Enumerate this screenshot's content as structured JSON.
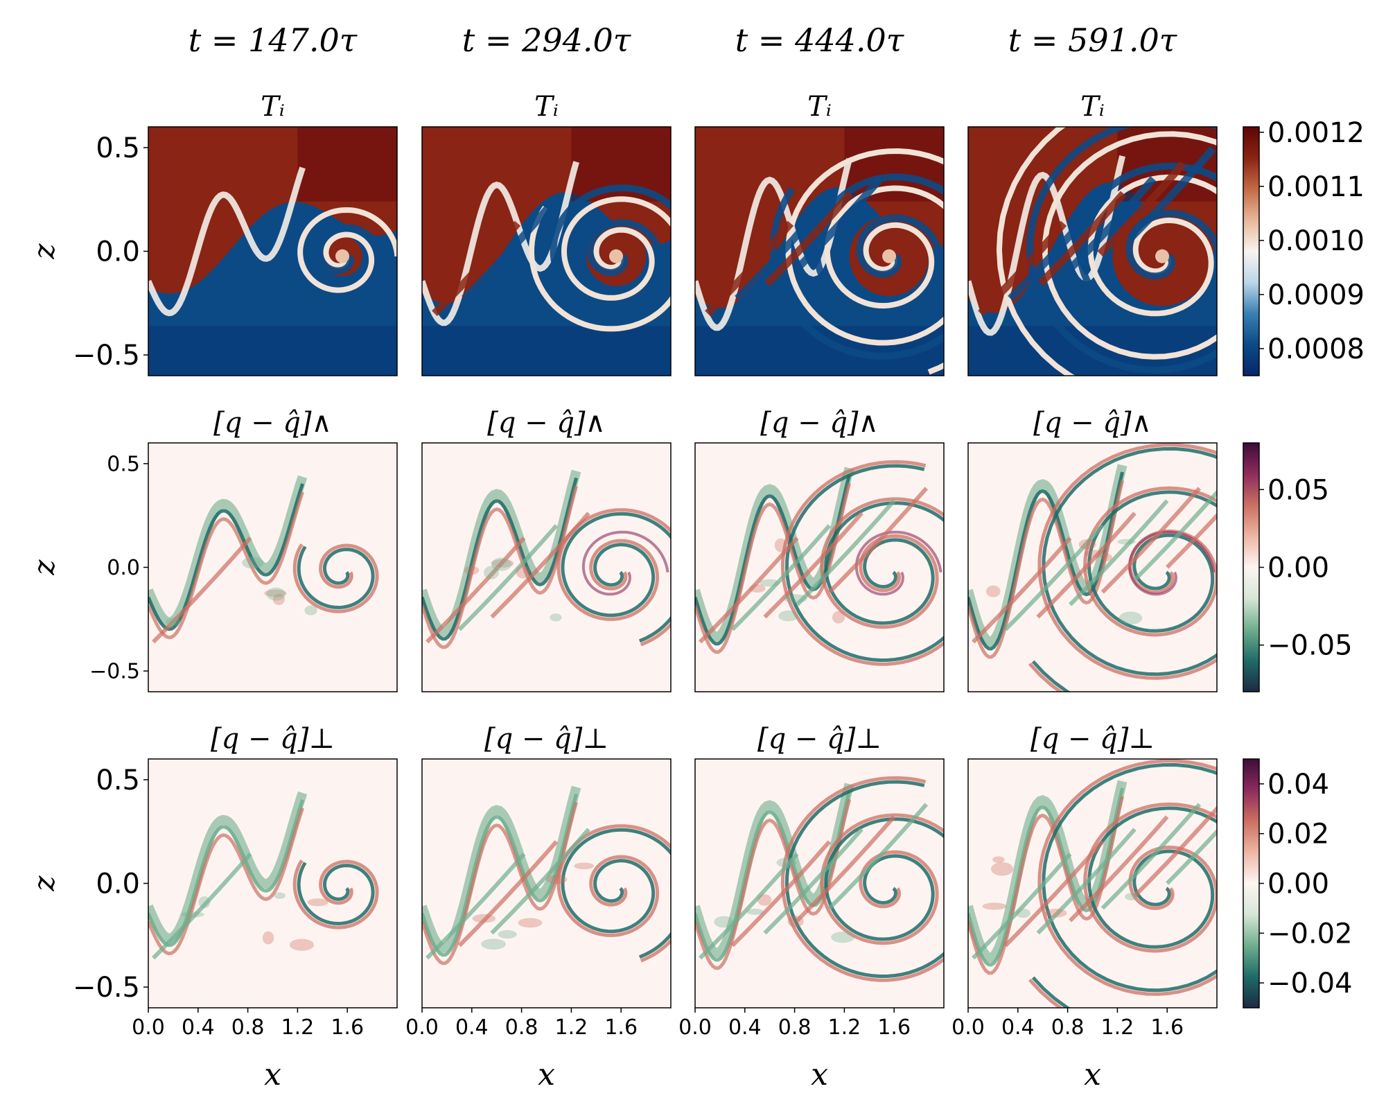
{
  "times": [
    "t = 147.0τ",
    "t = 294.0τ",
    "t = 444.0τ",
    "t = 591.0τ"
  ],
  "chart_data": [
    {
      "type": "heatmap",
      "panel_title": "Tᵢ",
      "ylabel": "z",
      "xlabel": "x",
      "xlim": [
        0,
        2
      ],
      "ylim": [
        -0.6,
        0.6
      ],
      "yticks": [
        "0.5",
        "0.0",
        "−0.5"
      ],
      "ytick_values": [
        0.5,
        0.0,
        -0.5
      ],
      "colorbar": {
        "range": [
          0.00075,
          0.00121
        ],
        "tick_values": [
          0.0012,
          0.0011,
          0.001,
          0.0009,
          0.0008
        ],
        "tick_labels": [
          "0.0012",
          "0.0011",
          "0.0010",
          "0.0009",
          "0.0008"
        ],
        "colors": [
          "#07276b",
          "#0c4a86",
          "#3a7fb4",
          "#bcd6e8",
          "#f8f4f0",
          "#e8b79a",
          "#c46a45",
          "#8a2414",
          "#5e0508"
        ]
      }
    },
    {
      "type": "heatmap",
      "panel_title": "[q − q̂]∧",
      "ylabel": "z",
      "xlabel": "x",
      "xlim": [
        0,
        2
      ],
      "ylim": [
        -0.6,
        0.6
      ],
      "yticks": [
        "0.5",
        "0.0",
        "−0.5"
      ],
      "ytick_values": [
        0.5,
        0.0,
        -0.5
      ],
      "colorbar": {
        "range": [
          -0.08,
          0.08
        ],
        "tick_values": [
          0.05,
          0.0,
          -0.05
        ],
        "tick_labels": [
          "0.05",
          "0.00",
          "−0.05"
        ],
        "colors": [
          "#1b2a43",
          "#1f6b67",
          "#6fae8e",
          "#d6e6d6",
          "#fdf5f2",
          "#eeb6a4",
          "#cc6f62",
          "#8e2b5e",
          "#3d0d38"
        ]
      }
    },
    {
      "type": "heatmap",
      "panel_title": "[q − q̂]⊥",
      "ylabel": "z",
      "xlabel": "x",
      "xlim": [
        0,
        2
      ],
      "ylim": [
        -0.6,
        0.6
      ],
      "yticks": [
        "0.5",
        "0.0",
        "−0.5"
      ],
      "ytick_values": [
        0.5,
        0.0,
        -0.5
      ],
      "xticks": [
        "0.0",
        "0.4",
        "0.8",
        "1.2",
        "1.6"
      ],
      "xtick_values": [
        0.0,
        0.4,
        0.8,
        1.2,
        1.6
      ],
      "colorbar": {
        "range": [
          -0.05,
          0.05
        ],
        "tick_values": [
          0.04,
          0.02,
          0.0,
          -0.02,
          -0.04
        ],
        "tick_labels": [
          "0.04",
          "0.02",
          "0.00",
          "−0.02",
          "−0.04"
        ],
        "colors": [
          "#1b2a43",
          "#1f6b67",
          "#6fae8e",
          "#d6e6d6",
          "#fdf5f2",
          "#eeb6a4",
          "#cc6f62",
          "#8e2b5e",
          "#3d0d38"
        ]
      }
    }
  ]
}
